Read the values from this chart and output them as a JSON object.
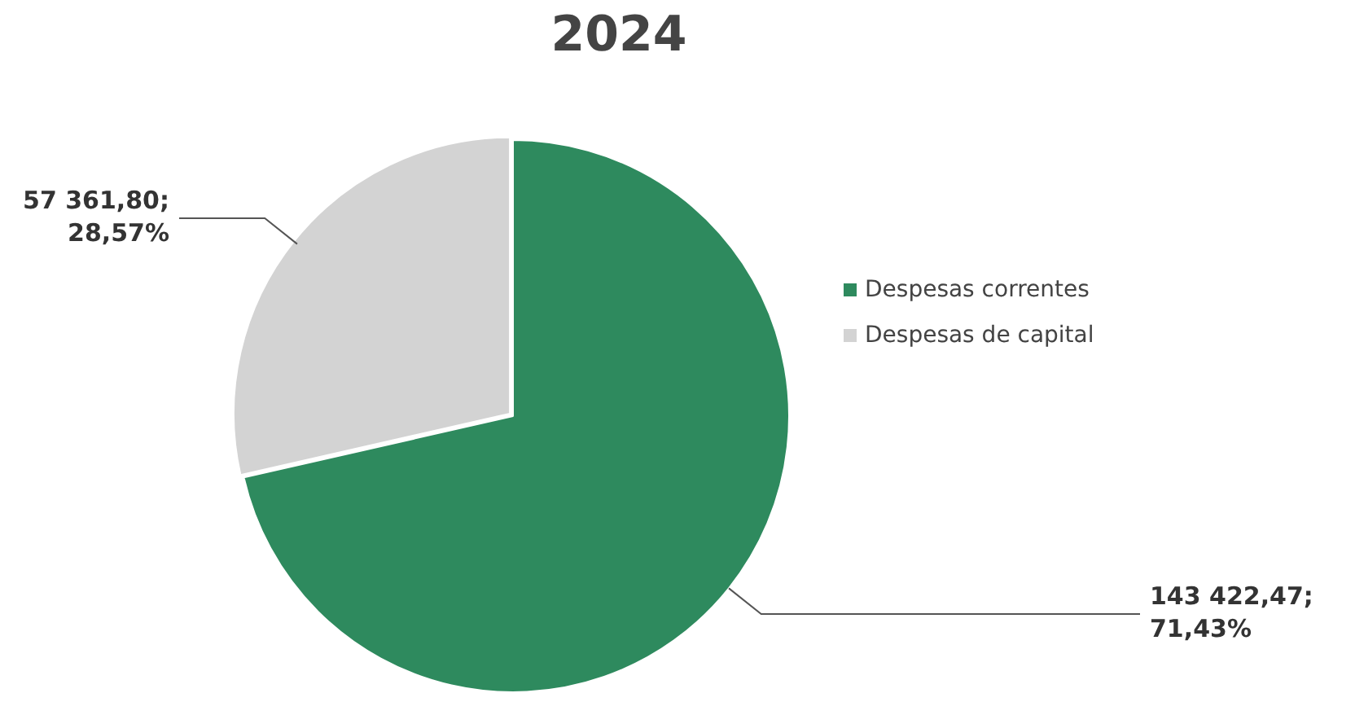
{
  "chart_data": {
    "type": "pie",
    "title": "2024",
    "categories": [
      "Despesas correntes",
      "Despesas de capital"
    ],
    "values": [
      143422.47,
      57361.8
    ],
    "colors": [
      "#2e8a5e",
      "#d3d3d3"
    ],
    "value_labels": [
      "143 422,47;\n71,43%",
      "57 361,80;\n28,57%"
    ],
    "legend": "right"
  }
}
